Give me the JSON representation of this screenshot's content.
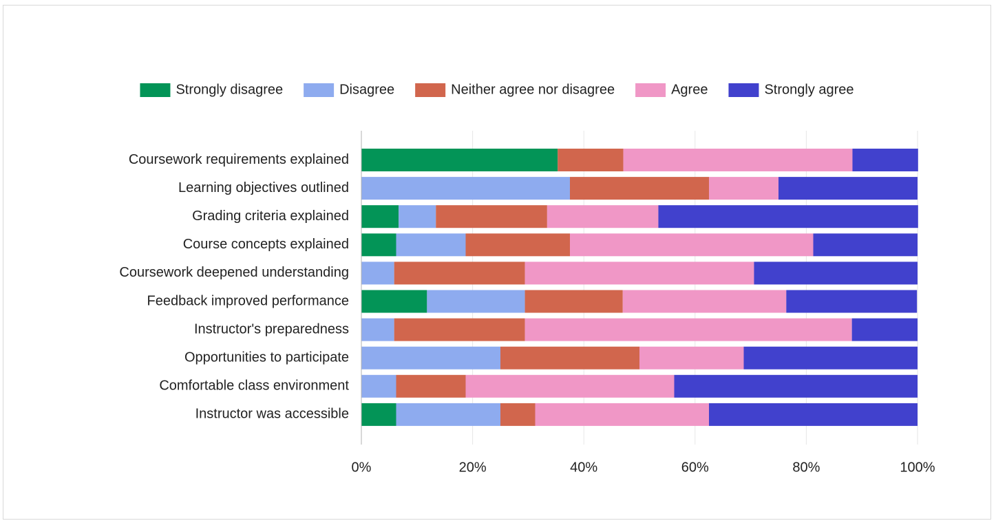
{
  "chart_data": {
    "type": "bar",
    "orientation": "horizontal",
    "stacked": true,
    "percent_stacked": true,
    "title": "",
    "xlabel": "",
    "ylabel": "",
    "xlim": [
      0,
      100
    ],
    "x_ticks": [
      0,
      20,
      40,
      60,
      80,
      100
    ],
    "x_tick_labels": [
      "0%",
      "20%",
      "40%",
      "60%",
      "80%",
      "100%"
    ],
    "grid": true,
    "legend_position": "top",
    "categories": [
      "Coursework requirements explained",
      "Learning objectives outlined",
      "Grading criteria explained",
      "Course concepts explained",
      "Coursework deepened understanding",
      "Feedback improved performance",
      "Instructor's preparedness",
      "Opportunities to participate",
      "Comfortable class environment",
      "Instructor was accessible"
    ],
    "series": [
      {
        "name": "Strongly disagree",
        "color": "#039457",
        "values": [
          35.3,
          0,
          6.7,
          6.25,
          0,
          11.8,
          0,
          0,
          0,
          6.25
        ]
      },
      {
        "name": "Disagree",
        "color": "#8eabef",
        "values": [
          0,
          37.5,
          6.7,
          12.5,
          5.9,
          17.6,
          5.9,
          25,
          6.25,
          18.75
        ]
      },
      {
        "name": "Neither agree nor disagree",
        "color": "#d1664d",
        "values": [
          11.8,
          25,
          20,
          18.75,
          23.5,
          17.6,
          23.5,
          25,
          12.5,
          6.25
        ]
      },
      {
        "name": "Agree",
        "color": "#f097c6",
        "values": [
          41.2,
          12.5,
          20,
          43.75,
          41.2,
          29.4,
          58.8,
          18.75,
          37.5,
          31.25
        ]
      },
      {
        "name": "Strongly agree",
        "color": "#4141cd",
        "values": [
          11.8,
          25,
          46.7,
          18.75,
          29.4,
          23.5,
          11.8,
          31.25,
          43.75,
          37.5
        ]
      }
    ]
  }
}
